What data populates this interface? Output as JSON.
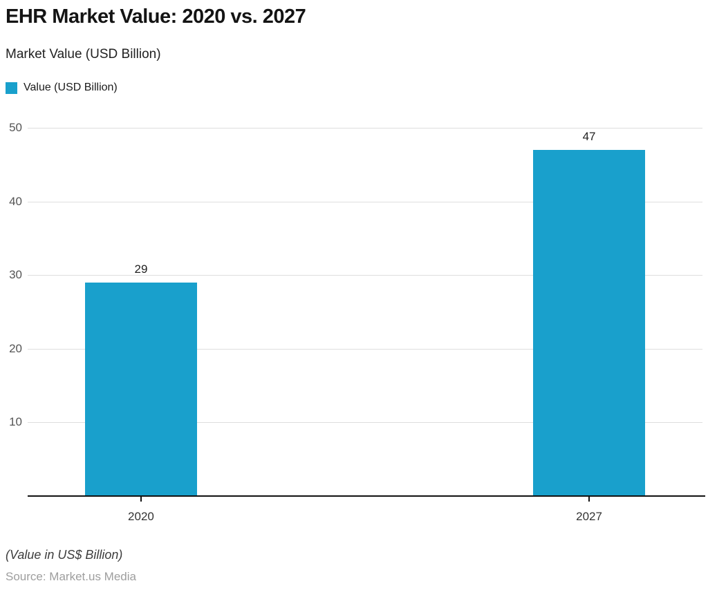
{
  "header": {
    "title": "EHR Market Value: 2020 vs. 2027",
    "subtitle": "Market Value (USD Billion)"
  },
  "legend": {
    "label": "Value (USD Billion)"
  },
  "chart_data": {
    "type": "bar",
    "title": "EHR Market Value: 2020 vs. 2027",
    "categories": [
      "2020",
      "2027"
    ],
    "series": [
      {
        "name": "Value (USD Billion)",
        "values": [
          29,
          47
        ]
      }
    ],
    "value_labels": [
      "29",
      "47"
    ],
    "xlabel": "",
    "ylabel": "Market Value (USD Billion)",
    "ylim": [
      0,
      50
    ],
    "ytick_step": 10,
    "ytick_labels": [
      "10",
      "20",
      "30",
      "40",
      "50"
    ],
    "grid": true,
    "legend_position": "top-left",
    "bar_color": "#19a0cc",
    "gridline_color": "#dedede",
    "axis_color": "#111111"
  },
  "footer": {
    "note": "(Value in US$ Billion)",
    "source": "Source: Market.us Media"
  }
}
